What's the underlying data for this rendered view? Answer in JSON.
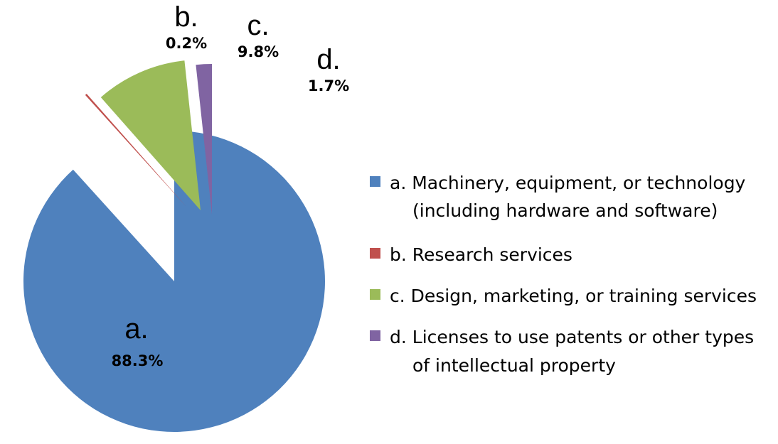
{
  "chart_data": {
    "type": "pie",
    "slices": [
      {
        "letter": "a.",
        "value": 88.3,
        "value_label": "88.3%",
        "color": "#4F81BD",
        "legend_lines": [
          "a. Machinery, equipment, or technology",
          "(including hardware and software)"
        ]
      },
      {
        "letter": "b.",
        "value": 0.2,
        "value_label": "0.2%",
        "color": "#C0504D",
        "legend_lines": [
          "b. Research services"
        ]
      },
      {
        "letter": "c.",
        "value": 9.8,
        "value_label": "9.8%",
        "color": "#9BBB59",
        "legend_lines": [
          "c. Design, marketing, or training services"
        ]
      },
      {
        "letter": "d.",
        "value": 1.7,
        "value_label": "1.7%",
        "color": "#8064A2",
        "legend_lines": [
          "d. Licenses to use patents or other types",
          "of intellectual property"
        ]
      }
    ],
    "legend_position": "right"
  }
}
